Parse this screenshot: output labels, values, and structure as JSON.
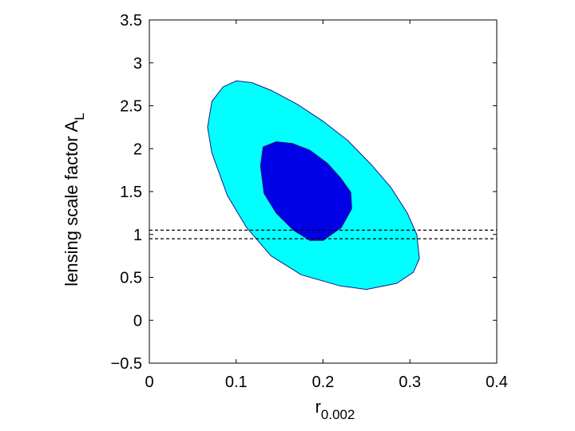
{
  "chart_data": {
    "type": "contour",
    "xlabel_main": "r",
    "xlabel_sub": "0.002",
    "ylabel_main": "lensing scale factor A",
    "ylabel_sub": "L",
    "xlim": [
      0,
      0.4
    ],
    "ylim": [
      -0.5,
      3.5
    ],
    "xticks": [
      0,
      0.1,
      0.2,
      0.3,
      0.4
    ],
    "xtick_labels": [
      "0",
      "0.1",
      "0.2",
      "0.3",
      "0.4"
    ],
    "yticks": [
      -0.5,
      0,
      0.5,
      1,
      1.5,
      2,
      2.5,
      3,
      3.5
    ],
    "ytick_labels": [
      "−0.5",
      "0",
      "0.5",
      "1",
      "1.5",
      "2",
      "2.5",
      "3",
      "3.5"
    ],
    "grid": false,
    "colors": {
      "outer_fill": "#00ffff",
      "inner_fill": "#0000e6",
      "contour_edge": "#1a1a80",
      "reference_line": "#000000"
    },
    "contours": [
      {
        "level": "outer",
        "points": [
          [
            0.072,
            1.95
          ],
          [
            0.067,
            2.25
          ],
          [
            0.072,
            2.55
          ],
          [
            0.085,
            2.72
          ],
          [
            0.1,
            2.79
          ],
          [
            0.118,
            2.77
          ],
          [
            0.14,
            2.68
          ],
          [
            0.17,
            2.52
          ],
          [
            0.2,
            2.32
          ],
          [
            0.228,
            2.1
          ],
          [
            0.255,
            1.82
          ],
          [
            0.278,
            1.55
          ],
          [
            0.297,
            1.25
          ],
          [
            0.308,
            1.0
          ],
          [
            0.311,
            0.72
          ],
          [
            0.304,
            0.56
          ],
          [
            0.285,
            0.43
          ],
          [
            0.25,
            0.36
          ],
          [
            0.22,
            0.4
          ],
          [
            0.175,
            0.53
          ],
          [
            0.14,
            0.75
          ],
          [
            0.112,
            1.08
          ],
          [
            0.09,
            1.45
          ]
        ]
      },
      {
        "level": "inner",
        "points": [
          [
            0.128,
            1.8
          ],
          [
            0.131,
            2.02
          ],
          [
            0.146,
            2.08
          ],
          [
            0.165,
            2.06
          ],
          [
            0.185,
            1.98
          ],
          [
            0.205,
            1.83
          ],
          [
            0.22,
            1.66
          ],
          [
            0.232,
            1.49
          ],
          [
            0.233,
            1.3
          ],
          [
            0.221,
            1.08
          ],
          [
            0.2,
            0.93
          ],
          [
            0.185,
            0.93
          ],
          [
            0.166,
            1.05
          ],
          [
            0.146,
            1.25
          ],
          [
            0.132,
            1.48
          ]
        ]
      }
    ],
    "reference_lines": [
      {
        "orientation": "horizontal",
        "y": 1.05,
        "style": "dashed"
      },
      {
        "orientation": "horizontal",
        "y": 0.95,
        "style": "dashed"
      }
    ]
  }
}
